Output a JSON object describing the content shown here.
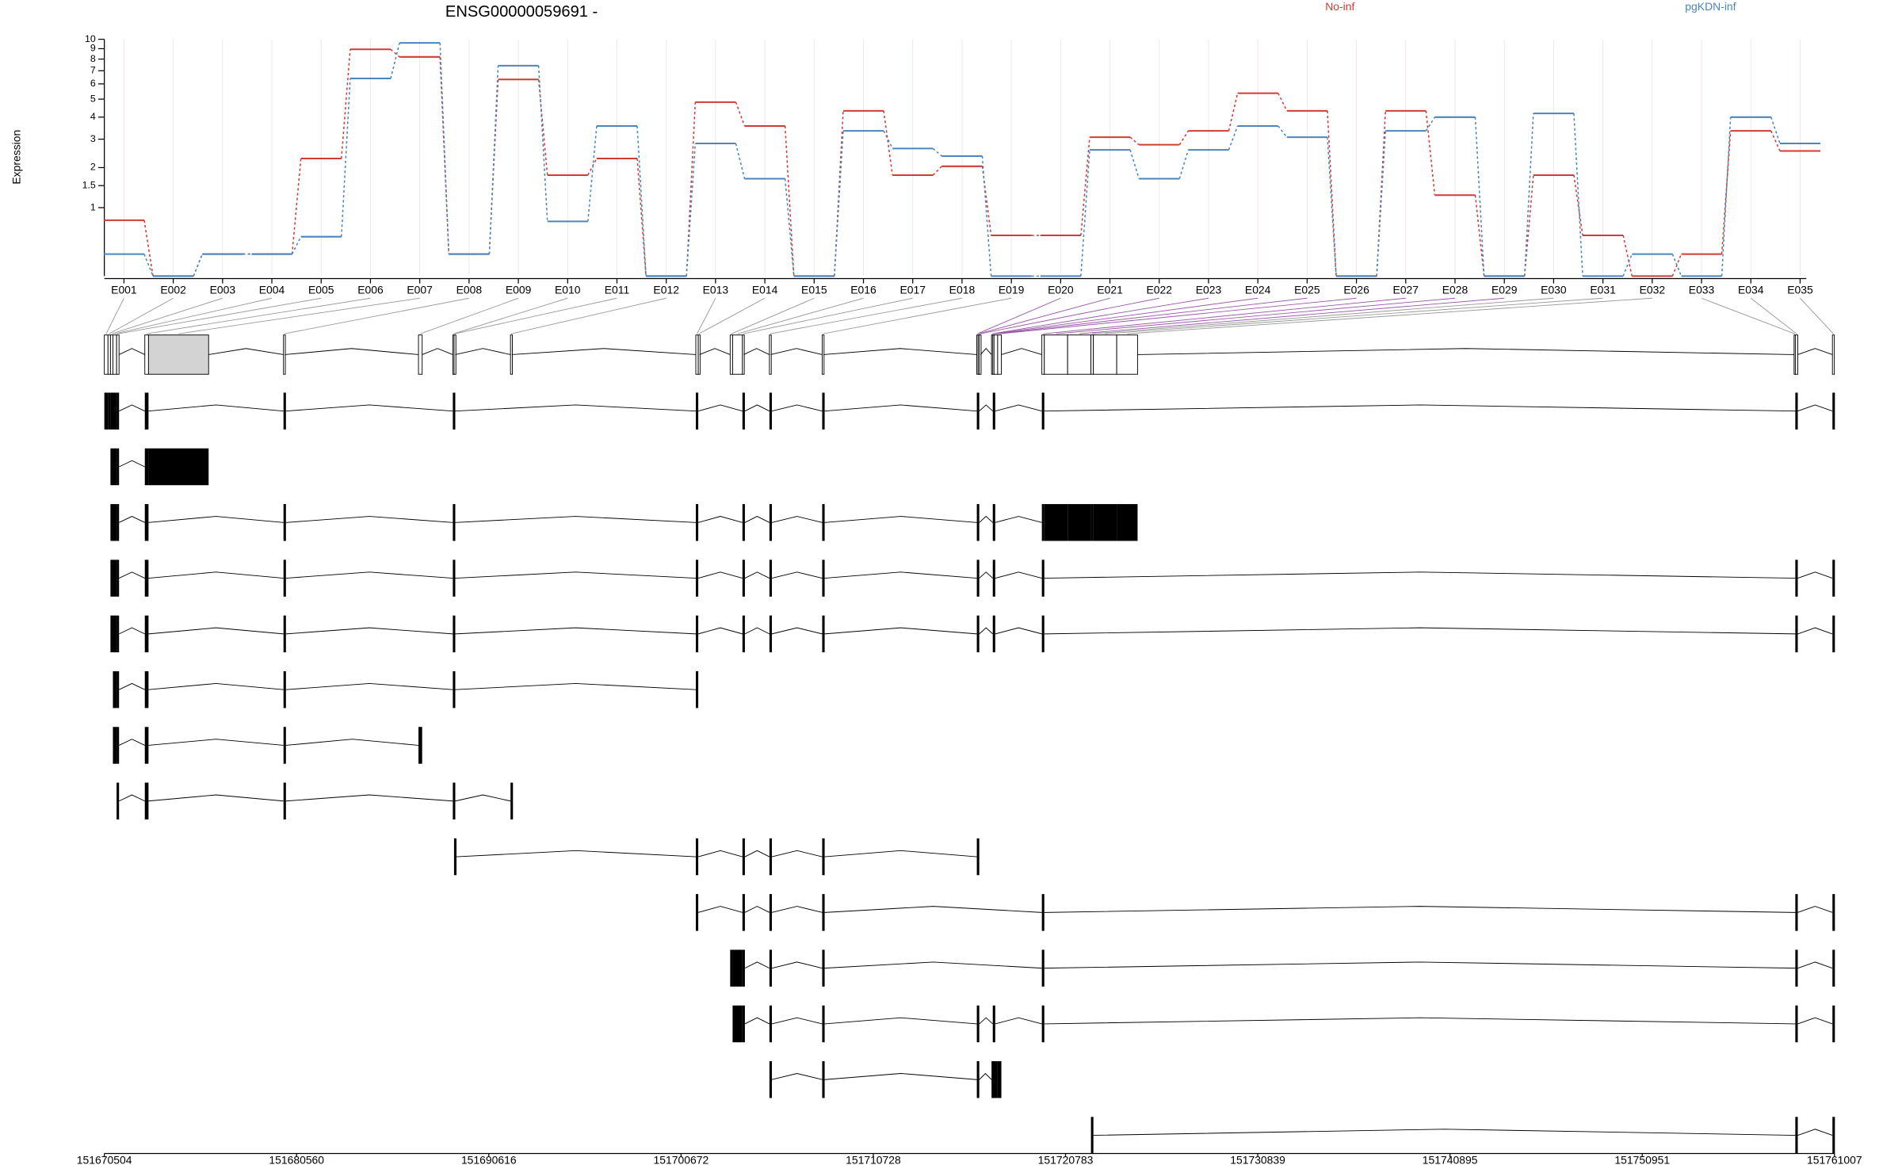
{
  "chart_data": {
    "type": "step",
    "title": "ENSG00000059691 -",
    "y_label": "Expression",
    "yscale": "log1p",
    "ylim": [
      0,
      10
    ],
    "yticks": [
      1,
      1.5,
      2,
      3,
      4,
      5,
      6,
      7,
      8,
      9,
      10
    ],
    "categories": [
      "E001",
      "E002",
      "E003",
      "E004",
      "E005",
      "E006",
      "E007",
      "E008",
      "E009",
      "E010",
      "E011",
      "E012",
      "E013",
      "E014",
      "E015",
      "E016",
      "E017",
      "E018",
      "E019",
      "E020",
      "E021",
      "E022",
      "E023",
      "E024",
      "E025",
      "E026",
      "E027",
      "E028",
      "E029",
      "E030",
      "E031",
      "E032",
      "E033",
      "E034",
      "E035"
    ],
    "series": [
      {
        "name": "No-inf",
        "color": "#d13b35",
        "values": [
          0.76,
          0,
          0.25,
          0.25,
          2.29,
          8.93,
          8.2,
          0.25,
          6.32,
          1.78,
          2.29,
          0,
          4.82,
          3.57,
          0,
          4.33,
          1.78,
          2.04,
          0.51,
          0.51,
          3.08,
          2.78,
          3.35,
          5.37,
          4.33,
          0,
          4.33,
          1.27,
          0,
          1.78,
          0.51,
          0,
          0.25,
          3.35,
          2.55
        ]
      },
      {
        "name": "pgKDN-inf",
        "color": "#4a86bd",
        "values": [
          0.25,
          0,
          0.25,
          0.25,
          0.49,
          6.4,
          9.6,
          0.25,
          7.42,
          0.74,
          3.57,
          0,
          2.83,
          1.68,
          0,
          3.35,
          2.64,
          2.37,
          0,
          0,
          2.59,
          1.68,
          2.59,
          3.57,
          3.08,
          0,
          3.35,
          4.0,
          0,
          4.19,
          0,
          0.25,
          0,
          4.0,
          2.83
        ]
      }
    ]
  },
  "gene_model": {
    "xlim": [
      151670504,
      151761007
    ],
    "xticks": [
      151670504,
      151680560,
      151690616,
      151700672,
      151710728,
      151720783,
      151730839,
      151740895,
      151750951,
      151761007
    ],
    "exons": [
      [
        151670504,
        151670697
      ],
      [
        151670697,
        151670825
      ],
      [
        151670825,
        151670953
      ],
      [
        151670953,
        151671146
      ],
      [
        151671146,
        151671274
      ],
      [
        151672622,
        151672815
      ],
      [
        151672815,
        151675960
      ],
      [
        151679876,
        151679940
      ],
      [
        151686937,
        151687129
      ],
      [
        151688734,
        151688798
      ],
      [
        151688798,
        151688862
      ],
      [
        151691751,
        151691815
      ],
      [
        151701444,
        151701572
      ],
      [
        151701572,
        151701636
      ],
      [
        151703241,
        151703369
      ],
      [
        151703369,
        151703883
      ],
      [
        151703883,
        151703947
      ],
      [
        151705295,
        151705359
      ],
      [
        151708055,
        151708119
      ],
      [
        151716143,
        151716207
      ],
      [
        151716207,
        151716271
      ],
      [
        151716271,
        151716336
      ],
      [
        151716913,
        151716978
      ],
      [
        151716978,
        151717042
      ],
      [
        151717042,
        151717234
      ],
      [
        151717234,
        151717427
      ],
      [
        151719545,
        151719674
      ],
      [
        151719674,
        151720893
      ],
      [
        151720893,
        151722113
      ],
      [
        151722113,
        151722241
      ],
      [
        151722241,
        151723461
      ],
      [
        151723461,
        151724552
      ],
      [
        151758894,
        151758958
      ],
      [
        151758958,
        151759086
      ],
      [
        151760900,
        151761000
      ]
    ],
    "transcripts": [
      [
        0,
        1,
        2,
        3,
        4,
        5,
        7,
        9,
        12,
        16,
        17,
        18,
        19,
        23,
        26,
        33,
        34
      ],
      [
        2,
        3,
        4,
        5,
        6
      ],
      [
        2,
        3,
        4,
        5,
        7,
        9,
        12,
        16,
        17,
        18,
        19,
        23,
        26,
        27,
        28,
        29,
        30,
        31
      ],
      [
        2,
        3,
        4,
        5,
        7,
        9,
        12,
        16,
        17,
        18,
        19,
        23,
        26,
        33,
        34
      ],
      [
        2,
        3,
        4,
        5,
        7,
        9,
        12,
        16,
        17,
        18,
        19,
        23,
        26,
        33,
        34
      ],
      [
        3,
        4,
        5,
        7,
        9,
        12
      ],
      [
        3,
        4,
        5,
        7,
        8
      ],
      [
        4,
        5,
        7,
        9,
        11
      ],
      [
        10,
        12,
        16,
        17,
        18,
        19
      ],
      [
        12,
        16,
        17,
        18,
        26,
        33,
        34
      ],
      [
        14,
        15,
        16,
        17,
        18,
        26,
        33,
        34
      ],
      [
        15,
        16,
        17,
        18,
        19,
        23,
        26,
        33,
        34
      ],
      [
        17,
        18,
        19,
        22,
        23,
        24,
        25
      ],
      [
        29,
        33,
        34
      ]
    ]
  }
}
